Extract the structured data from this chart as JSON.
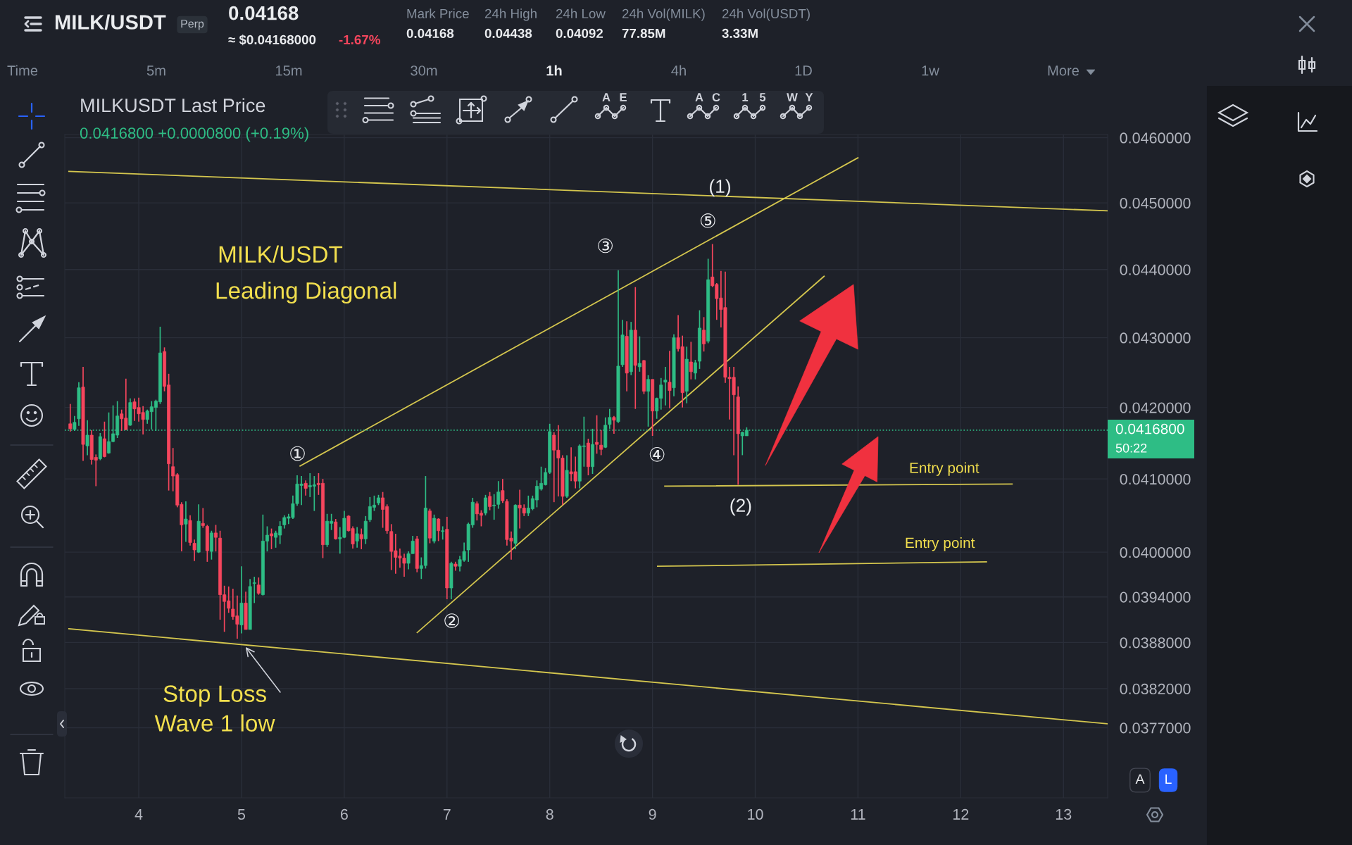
{
  "chart_data": {
    "type": "candlestick",
    "title": "MILK/USDT",
    "subtitle": "Leading Diagonal",
    "x": [
      3.3333,
      3.375,
      3.4167,
      3.4583,
      3.5,
      3.5417,
      3.5833,
      3.625,
      3.6667,
      3.7083,
      3.75,
      3.7917,
      3.8333,
      3.875,
      3.9167,
      3.9583,
      4,
      4.0417,
      4.0833,
      4.125,
      4.1667,
      4.2083,
      4.25,
      4.2917,
      4.3333,
      4.375,
      4.4167,
      4.4583,
      4.5,
      4.5417,
      4.5833,
      4.625,
      4.6667,
      4.7083,
      4.75,
      4.7917,
      4.8333,
      4.875,
      4.9167,
      4.9583,
      5,
      5.0417,
      5.0833,
      5.125,
      5.1667,
      5.2083,
      5.25,
      5.2917,
      5.3333,
      5.375,
      5.4167,
      5.4583,
      5.5,
      5.5417,
      5.5833,
      5.625,
      5.6667,
      5.7083,
      5.75,
      5.7917,
      5.8333,
      5.875,
      5.9167,
      5.9583,
      6,
      6.0417,
      6.0833,
      6.125,
      6.1667,
      6.2083,
      6.25,
      6.2917,
      6.3333,
      6.375,
      6.4167,
      6.4583,
      6.5,
      6.5417,
      6.5833,
      6.625,
      6.6667,
      6.7083,
      6.75,
      6.7917,
      6.8333,
      6.875,
      6.9167,
      6.9583,
      7,
      7.0417,
      7.0833,
      7.125,
      7.1667,
      7.2083,
      7.25,
      7.2917,
      7.3333,
      7.375,
      7.4167,
      7.4583,
      7.5,
      7.5417,
      7.5833,
      7.625,
      7.6667,
      7.7083,
      7.75,
      7.7917,
      7.8333,
      7.875,
      7.9167,
      7.9583,
      8,
      8.0417,
      8.0833,
      8.125,
      8.1667,
      8.2083,
      8.25,
      8.2917,
      8.3333,
      8.375,
      8.4167,
      8.4583,
      8.5,
      8.5417,
      8.5833,
      8.625,
      8.6667,
      8.7083,
      8.75,
      8.7917,
      8.8333,
      8.875,
      8.9167,
      8.9583,
      9,
      9.0417,
      9.0833,
      9.125,
      9.1667,
      9.2083,
      9.25,
      9.2917,
      9.3333,
      9.375,
      9.4167,
      9.4583,
      9.5,
      9.5417,
      9.5833,
      9.625,
      9.6667,
      9.7083,
      9.75,
      9.7917,
      9.8333,
      9.875,
      9.9167
    ],
    "ohlc": [
      [
        0.04177,
        0.04205,
        0.04166,
        0.0417
      ],
      [
        0.04169,
        0.04188,
        0.04167,
        0.04179
      ],
      [
        0.04184,
        0.04236,
        0.04174,
        0.04228
      ],
      [
        0.04229,
        0.04258,
        0.04125,
        0.04148
      ],
      [
        0.04146,
        0.04182,
        0.04133,
        0.04161
      ],
      [
        0.04161,
        0.04168,
        0.0412,
        0.04127
      ],
      [
        0.0413,
        0.04134,
        0.0409,
        0.04126
      ],
      [
        0.04128,
        0.04164,
        0.04126,
        0.04159
      ],
      [
        0.04156,
        0.0418,
        0.0413,
        0.04131
      ],
      [
        0.04136,
        0.04193,
        0.04135,
        0.04152
      ],
      [
        0.04152,
        0.04203,
        0.04151,
        0.04163
      ],
      [
        0.04161,
        0.04209,
        0.04157,
        0.04188
      ],
      [
        0.04191,
        0.04197,
        0.04167,
        0.04184
      ],
      [
        0.04185,
        0.04241,
        0.04168,
        0.04169
      ],
      [
        0.04175,
        0.04213,
        0.04174,
        0.04207
      ],
      [
        0.04208,
        0.04213,
        0.04181,
        0.04198
      ],
      [
        0.042,
        0.04214,
        0.0418,
        0.04191
      ],
      [
        0.04193,
        0.04202,
        0.04162,
        0.04183
      ],
      [
        0.04183,
        0.04197,
        0.04177,
        0.04195
      ],
      [
        0.04194,
        0.04209,
        0.04169,
        0.04201
      ],
      [
        0.042,
        0.04211,
        0.04167,
        0.04209
      ],
      [
        0.04208,
        0.04316,
        0.04205,
        0.04278
      ],
      [
        0.0428,
        0.04286,
        0.04223,
        0.0423
      ],
      [
        0.04232,
        0.04248,
        0.04084,
        0.04121
      ],
      [
        0.04117,
        0.04143,
        0.04083,
        0.04104
      ],
      [
        0.04106,
        0.04108,
        0.04061,
        0.04064
      ],
      [
        0.04065,
        0.04068,
        0.04001,
        0.04037
      ],
      [
        0.04038,
        0.04069,
        0.04014,
        0.04045
      ],
      [
        0.04043,
        0.0405,
        0.04009,
        0.04013
      ],
      [
        0.04012,
        0.04017,
        0.03988,
        0.04003
      ],
      [
        0.04,
        0.04065,
        0.03999,
        0.04042
      ],
      [
        0.04039,
        0.0406,
        0.04033,
        0.04036
      ],
      [
        0.04035,
        0.04037,
        0.03987,
        0.04002
      ],
      [
        0.04001,
        0.04029,
        0.0399,
        0.04026
      ],
      [
        0.04026,
        0.04037,
        0.04001,
        0.0402
      ],
      [
        0.04019,
        0.04029,
        0.0391,
        0.03943
      ],
      [
        0.03943,
        0.03955,
        0.03894,
        0.03934
      ],
      [
        0.03935,
        0.03954,
        0.03919,
        0.03925
      ],
      [
        0.03924,
        0.03951,
        0.0391,
        0.03914
      ],
      [
        0.03915,
        0.03942,
        0.03885,
        0.03904
      ],
      [
        0.03903,
        0.03981,
        0.03892,
        0.03932
      ],
      [
        0.03932,
        0.03947,
        0.03897,
        0.03897
      ],
      [
        0.03897,
        0.03964,
        0.03897,
        0.03954
      ],
      [
        0.03958,
        0.03967,
        0.03932,
        0.03959
      ],
      [
        0.03956,
        0.03966,
        0.03943,
        0.03945
      ],
      [
        0.03943,
        0.04051,
        0.03942,
        0.04015
      ],
      [
        0.04015,
        0.04035,
        0.04001,
        0.04023
      ],
      [
        0.04025,
        0.04032,
        0.04004,
        0.04022
      ],
      [
        0.0402,
        0.04029,
        0.04006,
        0.04026
      ],
      [
        0.04023,
        0.04042,
        0.04011,
        0.04035
      ],
      [
        0.04037,
        0.0405,
        0.04032,
        0.04047
      ],
      [
        0.04046,
        0.04052,
        0.04038,
        0.04048
      ],
      [
        0.04047,
        0.04077,
        0.04045,
        0.04066
      ],
      [
        0.04066,
        0.04105,
        0.04063,
        0.04093
      ],
      [
        0.04091,
        0.04104,
        0.04064,
        0.04093
      ],
      [
        0.04094,
        0.04098,
        0.04077,
        0.04087
      ],
      [
        0.04089,
        0.04108,
        0.04075,
        0.04091
      ],
      [
        0.0409,
        0.04104,
        0.04056,
        0.04092
      ],
      [
        0.04094,
        0.04108,
        0.04078,
        0.04092
      ],
      [
        0.04094,
        0.041,
        0.03992,
        0.0401
      ],
      [
        0.0401,
        0.04052,
        0.04007,
        0.04042
      ],
      [
        0.04039,
        0.04052,
        0.0403,
        0.04042
      ],
      [
        0.04041,
        0.04045,
        0.04017,
        0.04018
      ],
      [
        0.04018,
        0.04034,
        0.03998,
        0.0402
      ],
      [
        0.0402,
        0.04056,
        0.04019,
        0.04046
      ],
      [
        0.04049,
        0.0405,
        0.04028,
        0.04029
      ],
      [
        0.04032,
        0.04035,
        0.04005,
        0.04011
      ],
      [
        0.04015,
        0.04034,
        0.04006,
        0.04025
      ],
      [
        0.04024,
        0.04032,
        0.04004,
        0.04018
      ],
      [
        0.04018,
        0.04049,
        0.04011,
        0.04042
      ],
      [
        0.04044,
        0.04075,
        0.04041,
        0.04062
      ],
      [
        0.04061,
        0.04077,
        0.04056,
        0.04064
      ],
      [
        0.04067,
        0.04078,
        0.04064,
        0.04074
      ],
      [
        0.04074,
        0.04082,
        0.04033,
        0.04058
      ],
      [
        0.04062,
        0.04065,
        0.04025,
        0.04029
      ],
      [
        0.04028,
        0.04038,
        0.03976,
        0.04001
      ],
      [
        0.04002,
        0.04025,
        0.03971,
        0.03993
      ],
      [
        0.03995,
        0.04005,
        0.03979,
        0.03992
      ],
      [
        0.03992,
        0.03998,
        0.03967,
        0.03985
      ],
      [
        0.03985,
        0.04001,
        0.03977,
        0.03998
      ],
      [
        0.03998,
        0.04022,
        0.03998,
        0.04015
      ],
      [
        0.04018,
        0.04022,
        0.03973,
        0.03978
      ],
      [
        0.03978,
        0.03993,
        0.03964,
        0.03982
      ],
      [
        0.03982,
        0.04104,
        0.03978,
        0.0406
      ],
      [
        0.04056,
        0.04059,
        0.04012,
        0.04019
      ],
      [
        0.04015,
        0.04051,
        0.04012,
        0.04046
      ],
      [
        0.04045,
        0.04046,
        0.04015,
        0.04029
      ],
      [
        0.04028,
        0.04035,
        0.04017,
        0.04029
      ],
      [
        0.04031,
        0.04048,
        0.03937,
        0.03952
      ],
      [
        0.03952,
        0.03987,
        0.03937,
        0.03985
      ],
      [
        0.03984,
        0.03987,
        0.03975,
        0.03981
      ],
      [
        0.03981,
        0.03995,
        0.03974,
        0.0399
      ],
      [
        0.03989,
        0.04013,
        0.03987,
        0.04001
      ],
      [
        0.04003,
        0.0404,
        0.03987,
        0.04038
      ],
      [
        0.04037,
        0.04074,
        0.04033,
        0.04068
      ],
      [
        0.04066,
        0.04069,
        0.04043,
        0.04052
      ],
      [
        0.04053,
        0.04057,
        0.04035,
        0.0405
      ],
      [
        0.04053,
        0.04078,
        0.0405,
        0.04074
      ],
      [
        0.04076,
        0.04082,
        0.04057,
        0.04062
      ],
      [
        0.04063,
        0.04079,
        0.04044,
        0.04064
      ],
      [
        0.04065,
        0.04097,
        0.04059,
        0.04082
      ],
      [
        0.04084,
        0.041,
        0.04067,
        0.0407
      ],
      [
        0.04069,
        0.04072,
        0.04009,
        0.04017
      ],
      [
        0.04019,
        0.04028,
        0.0399,
        0.04015
      ],
      [
        0.04012,
        0.04065,
        0.04004,
        0.04064
      ],
      [
        0.04064,
        0.04085,
        0.04032,
        0.0406
      ],
      [
        0.0406,
        0.04065,
        0.04049,
        0.04053
      ],
      [
        0.04053,
        0.04077,
        0.04049,
        0.0406
      ],
      [
        0.04059,
        0.04077,
        0.04057,
        0.04073
      ],
      [
        0.04071,
        0.04098,
        0.04061,
        0.0409
      ],
      [
        0.04086,
        0.04117,
        0.04084,
        0.04094
      ],
      [
        0.04092,
        0.04115,
        0.04091,
        0.04109
      ],
      [
        0.04109,
        0.04177,
        0.04107,
        0.04166
      ],
      [
        0.04161,
        0.04165,
        0.04068,
        0.0414
      ],
      [
        0.0414,
        0.04175,
        0.04076,
        0.04129
      ],
      [
        0.04129,
        0.04133,
        0.04064,
        0.04076
      ],
      [
        0.04076,
        0.04133,
        0.04074,
        0.04112
      ],
      [
        0.0411,
        0.04144,
        0.04097,
        0.04107
      ],
      [
        0.0411,
        0.04131,
        0.04087,
        0.04097
      ],
      [
        0.04097,
        0.04148,
        0.04087,
        0.04146
      ],
      [
        0.04145,
        0.04187,
        0.04117,
        0.04146
      ],
      [
        0.0415,
        0.04156,
        0.04105,
        0.04117
      ],
      [
        0.04117,
        0.0417,
        0.04107,
        0.04148
      ],
      [
        0.04151,
        0.04189,
        0.04135,
        0.04148
      ],
      [
        0.04147,
        0.04168,
        0.04133,
        0.04141
      ],
      [
        0.04144,
        0.04186,
        0.04143,
        0.04175
      ],
      [
        0.04176,
        0.04198,
        0.0417,
        0.04186
      ],
      [
        0.04186,
        0.04188,
        0.04163,
        0.04182
      ],
      [
        0.0418,
        0.04399,
        0.04178,
        0.04259
      ],
      [
        0.04261,
        0.04326,
        0.04258,
        0.04304
      ],
      [
        0.04302,
        0.04324,
        0.04223,
        0.04249
      ],
      [
        0.04251,
        0.04323,
        0.04246,
        0.04311
      ],
      [
        0.04311,
        0.04374,
        0.04198,
        0.0426
      ],
      [
        0.04258,
        0.04302,
        0.04251,
        0.04263
      ],
      [
        0.04267,
        0.04268,
        0.04219,
        0.04223
      ],
      [
        0.04223,
        0.04246,
        0.04173,
        0.0424
      ],
      [
        0.0424,
        0.0424,
        0.0416,
        0.04195
      ],
      [
        0.04195,
        0.04214,
        0.04184,
        0.04213
      ],
      [
        0.04213,
        0.04242,
        0.04197,
        0.04232
      ],
      [
        0.04236,
        0.04258,
        0.04203,
        0.04239
      ],
      [
        0.04236,
        0.04281,
        0.04199,
        0.04224
      ],
      [
        0.04228,
        0.04305,
        0.04216,
        0.043
      ],
      [
        0.043,
        0.04333,
        0.0428,
        0.04284
      ],
      [
        0.04287,
        0.04303,
        0.042,
        0.04221
      ],
      [
        0.04223,
        0.04287,
        0.04206,
        0.04269
      ],
      [
        0.04265,
        0.04294,
        0.0424,
        0.04251
      ],
      [
        0.04249,
        0.04268,
        0.0424,
        0.04264
      ],
      [
        0.04266,
        0.0434,
        0.04255,
        0.04314
      ],
      [
        0.04311,
        0.0433,
        0.0428,
        0.04291
      ],
      [
        0.04295,
        0.04416,
        0.04292,
        0.04385
      ],
      [
        0.04389,
        0.04438,
        0.04374,
        0.04376
      ],
      [
        0.04378,
        0.0438,
        0.04326,
        0.04357
      ],
      [
        0.04358,
        0.04398,
        0.04315,
        0.04341
      ],
      [
        0.04344,
        0.04397,
        0.04235,
        0.04243
      ],
      [
        0.04243,
        0.04258,
        0.04183,
        0.04241
      ],
      [
        0.04243,
        0.04258,
        0.04133,
        0.04218
      ],
      [
        0.04215,
        0.0423,
        0.04092,
        0.04163
      ],
      [
        0.0416,
        0.04166,
        0.04133,
        0.04165
      ],
      [
        0.0416,
        0.04172,
        0.0416,
        0.04168
      ]
    ],
    "series": [
      {
        "type": "line",
        "x": [
          3.32,
          13.43
        ],
        "values": [
          0.04548,
          0.04488
        ],
        "color": "#d4c64e"
      },
      {
        "type": "line",
        "x": [
          3.32,
          13.43
        ],
        "values": [
          0.03898,
          0.03775
        ],
        "color": "#d4c64e"
      },
      {
        "type": "line",
        "x": [
          5.57,
          11.0
        ],
        "values": [
          0.04118,
          0.04569
        ],
        "color": "#d4c64e"
      },
      {
        "type": "line",
        "x": [
          6.71,
          10.67
        ],
        "values": [
          0.03893,
          0.0439
        ],
        "color": "#d4c64e"
      },
      {
        "type": "line",
        "x": [
          9.12,
          12.5
        ],
        "values": [
          0.0409,
          0.04093
        ],
        "color": "#d4c64e"
      },
      {
        "type": "line",
        "x": [
          9.05,
          12.25
        ],
        "values": [
          0.03981,
          0.03987
        ],
        "color": "#d4c64e"
      }
    ],
    "ref_lines": [
      {
        "axis": "y",
        "value": 0.04168,
        "label": "0.0416800",
        "color": "#2ebd85",
        "line_style": "dotted"
      }
    ],
    "xlim": [
      3.28,
      13.43
    ],
    "ylim": [
      0.03682,
      0.04605
    ],
    "log": true,
    "grid": true,
    "xticks": [
      4,
      5,
      6,
      7,
      8,
      9,
      10,
      11,
      12,
      13
    ],
    "yticks": [
      {
        "value": 0.046,
        "label": "0.0460000"
      },
      {
        "value": 0.045,
        "label": "0.0450000"
      },
      {
        "value": 0.044,
        "label": "0.0440000"
      },
      {
        "value": 0.043,
        "label": "0.0430000"
      },
      {
        "value": 0.042,
        "label": "0.0420000"
      },
      {
        "value": 0.041,
        "label": "0.0410000"
      },
      {
        "value": 0.04,
        "label": "0.0400000"
      },
      {
        "value": 0.0394,
        "label": "0.0394000"
      },
      {
        "value": 0.0388,
        "label": "0.0388000"
      },
      {
        "value": 0.0382,
        "label": "0.0382000"
      },
      {
        "value": 0.0377,
        "label": "0.0377000"
      }
    ],
    "annotations": [
      "MILK/USDT",
      "Perp",
      "0.04168",
      "≈ $0.04168000",
      "-1.67%",
      "Mark Price",
      "0.04168",
      "24h High",
      "0.04438",
      "24h Low",
      "0.04092",
      "24h Vol(MILK)",
      "77.85M",
      "24h Vol(USDT)",
      "3.33M",
      "Time",
      "5m",
      "15m",
      "30m",
      "1h",
      "4h",
      "1D",
      "1w",
      "More",
      "MILKUSDT Last Price",
      "0.0416800 +0.0000800 (+0.19%)",
      "50:22",
      "A",
      "L",
      "A E",
      "A C",
      "1 5",
      "W Y",
      "①",
      "②",
      "③",
      "④",
      "⑤",
      "(1)",
      "(2)",
      "Entry point",
      "Entry point",
      {
        "text": "Stop Loss\nWave 1 low",
        "x": 5.04,
        "y": 0.03874
      }
    ]
  }
}
